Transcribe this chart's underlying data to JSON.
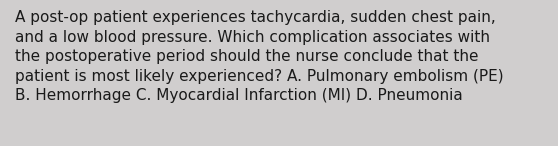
{
  "text": "A post-op patient experiences tachycardia, sudden chest pain,\nand a low blood pressure. Which complication associates with\nthe postoperative period should the nurse conclude that the\npatient is most likely experienced? A. Pulmonary embolism (PE)\nB. Hemorrhage C. Myocardial Infarction (MI) D. Pneumonia",
  "background_color": "#d0cece",
  "text_color": "#1a1a1a",
  "font_size": 11.0,
  "fig_width": 5.58,
  "fig_height": 1.46,
  "dpi": 100
}
